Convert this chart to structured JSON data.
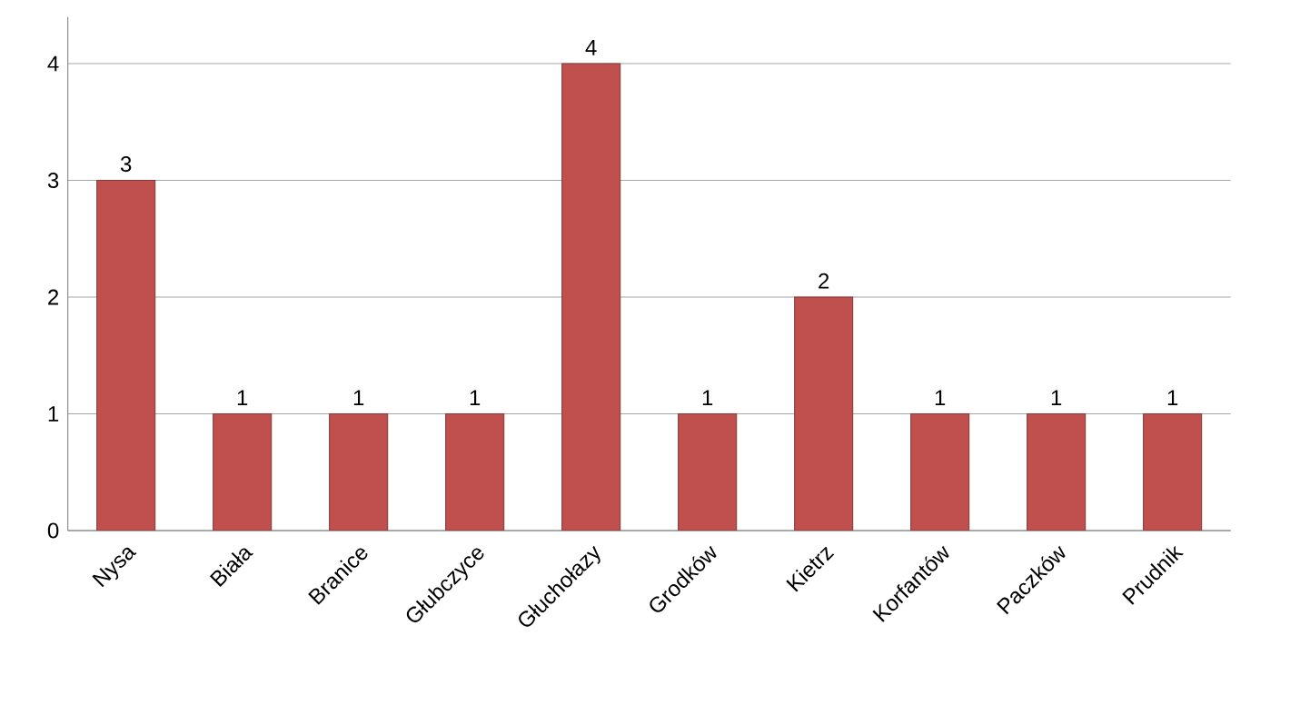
{
  "chart_data": {
    "type": "bar",
    "categories": [
      "Nysa",
      "Biała",
      "Branice",
      "Głubczyce",
      "Głuchołazy",
      "Grodków",
      "Kietrz",
      "Korfantów",
      "Paczków",
      "Prudnik"
    ],
    "values": [
      3,
      1,
      1,
      1,
      4,
      1,
      2,
      1,
      1,
      1
    ],
    "color": "#c0504d",
    "ylim": [
      0,
      4.4
    ],
    "yticks": [
      0,
      1,
      2,
      3,
      4
    ],
    "grid": "y",
    "data_labels": true
  }
}
